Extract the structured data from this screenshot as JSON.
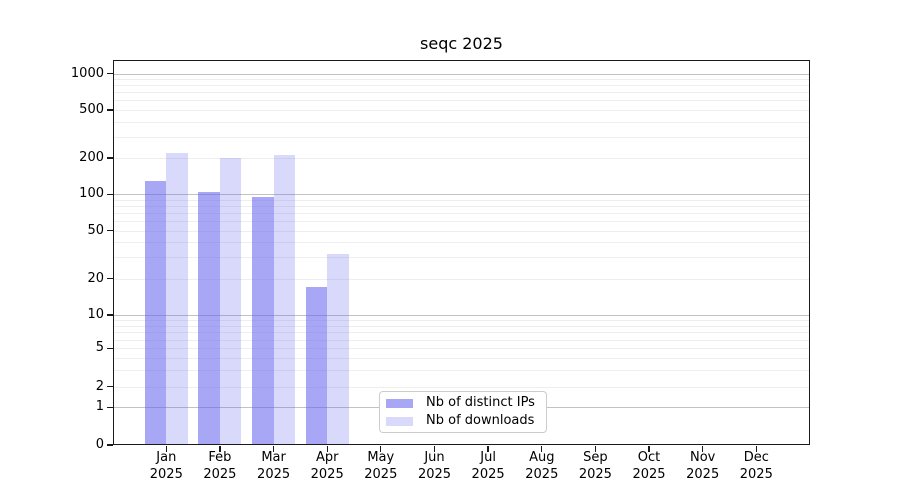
{
  "chart_data": {
    "type": "bar",
    "title": "seqc 2025",
    "categories": [
      "Jan\n2025",
      "Feb\n2025",
      "Mar\n2025",
      "Apr\n2025",
      "May\n2025",
      "Jun\n2025",
      "Jul\n2025",
      "Aug\n2025",
      "Sep\n2025",
      "Oct\n2025",
      "Nov\n2025",
      "Dec\n2025"
    ],
    "series": [
      {
        "name": "Nb of distinct IPs",
        "color": "rgba(98,98,238,0.56)",
        "values": [
          130,
          105,
          95,
          17,
          null,
          null,
          null,
          null,
          null,
          null,
          null,
          null
        ]
      },
      {
        "name": "Nb of downloads",
        "color": "rgba(98,98,238,0.24)",
        "values": [
          220,
          200,
          210,
          32,
          null,
          null,
          null,
          null,
          null,
          null,
          null,
          null
        ]
      }
    ],
    "xlabel": "",
    "ylabel": "",
    "yscale": "symlog-like",
    "ylim": [
      0,
      1333
    ],
    "ytick_labels": [
      "0",
      "1",
      "2",
      "5",
      "10",
      "20",
      "50",
      "100",
      "200",
      "500",
      "1000"
    ],
    "grid": "horizontal",
    "major_grid_values": [
      1,
      10,
      100,
      1000
    ],
    "legend_position": "lower center"
  },
  "colors": {
    "major_grid": "#c2c2c2",
    "minor_grid": "#eeeeee",
    "spine": "#1a1a1a",
    "text": "#000000",
    "legend_border": "#cccccc",
    "background": "#ffffff"
  }
}
